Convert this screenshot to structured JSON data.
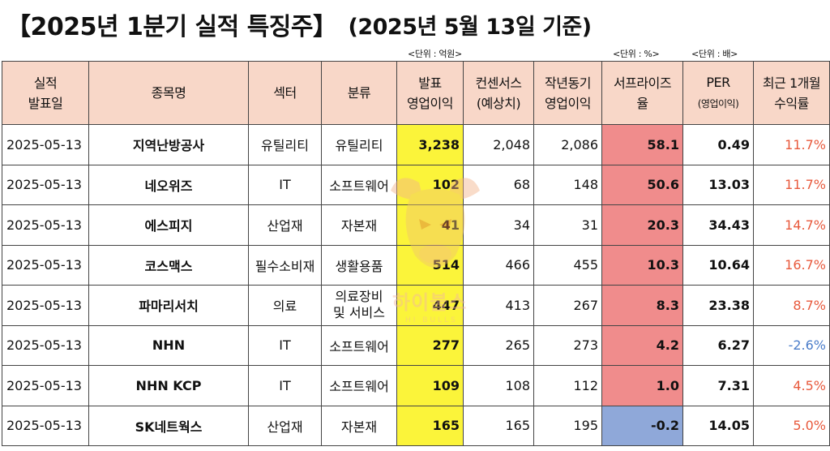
{
  "title": {
    "main": "【2025년 1분기 실적 특징주】",
    "sub": "(2025년 5월 13일 기준)"
  },
  "units": {
    "op_income": "<단위 : 억원>",
    "surprise": "<단위 : %>",
    "per": "<단위 : 배>"
  },
  "headers": {
    "date": [
      "실적",
      "발표일"
    ],
    "name": "종목명",
    "sector": "섹터",
    "classification": "분류",
    "op_income": [
      "발표",
      "영업이익"
    ],
    "consensus": [
      "컨센서스",
      "(예상치)"
    ],
    "last_year": [
      "작년동기",
      "영업이익"
    ],
    "surprise": [
      "서프라이즈",
      "율"
    ],
    "per": [
      "PER",
      "(영업이익)"
    ],
    "return_1m": [
      "최근 1개월",
      "수익률"
    ]
  },
  "rows": [
    {
      "date": "2025-05-13",
      "name": "지역난방공사",
      "sector": "유틸리티",
      "class1": "유틸리티",
      "class2": "",
      "op_income": "3,238",
      "consensus": "2,048",
      "last_year": "2,086",
      "surprise": "58.1",
      "per": "0.49",
      "return_1m": "11.7%"
    },
    {
      "date": "2025-05-13",
      "name": "네오위즈",
      "sector": "IT",
      "class1": "소프트웨어",
      "class2": "",
      "op_income": "102",
      "consensus": "68",
      "last_year": "148",
      "surprise": "50.6",
      "per": "13.03",
      "return_1m": "11.7%"
    },
    {
      "date": "2025-05-13",
      "name": "에스피지",
      "sector": "산업재",
      "class1": "자본재",
      "class2": "",
      "op_income": "41",
      "consensus": "34",
      "last_year": "31",
      "surprise": "20.3",
      "per": "34.43",
      "return_1m": "14.7%"
    },
    {
      "date": "2025-05-13",
      "name": "코스맥스",
      "sector": "필수소비재",
      "class1": "생활용품",
      "class2": "",
      "op_income": "514",
      "consensus": "466",
      "last_year": "455",
      "surprise": "10.3",
      "per": "10.64",
      "return_1m": "16.7%"
    },
    {
      "date": "2025-05-13",
      "name": "파마리서치",
      "sector": "의료",
      "class1": "의료장비",
      "class2": "및 서비스",
      "op_income": "447",
      "consensus": "413",
      "last_year": "267",
      "surprise": "8.3",
      "per": "23.38",
      "return_1m": "8.7%"
    },
    {
      "date": "2025-05-13",
      "name": "NHN",
      "sector": "IT",
      "class1": "소프트웨어",
      "class2": "",
      "op_income": "277",
      "consensus": "265",
      "last_year": "273",
      "surprise": "4.2",
      "per": "6.27",
      "return_1m": "-2.6%"
    },
    {
      "date": "2025-05-13",
      "name": "NHN KCP",
      "sector": "IT",
      "class1": "소프트웨어",
      "class2": "",
      "op_income": "109",
      "consensus": "108",
      "last_year": "112",
      "surprise": "1.0",
      "per": "7.31",
      "return_1m": "4.5%"
    },
    {
      "date": "2025-05-13",
      "name": "SK네트웍스",
      "sector": "산업재",
      "class1": "자본재",
      "class2": "",
      "op_income": "165",
      "consensus": "165",
      "last_year": "195",
      "surprise": "-0.2",
      "per": "14.05",
      "return_1m": "5.0%"
    }
  ],
  "watermark": {
    "text": "하이불스",
    "sub": "HI BULLS"
  },
  "colors": {
    "header_bg": "#f8d7c8",
    "op_income_bg": "#fbf43a",
    "surprise_positive_bg": "#f08c8c",
    "surprise_negative_bg": "#8fa8d9",
    "return_positive": "#e8593c",
    "return_negative": "#4a7cc9"
  }
}
